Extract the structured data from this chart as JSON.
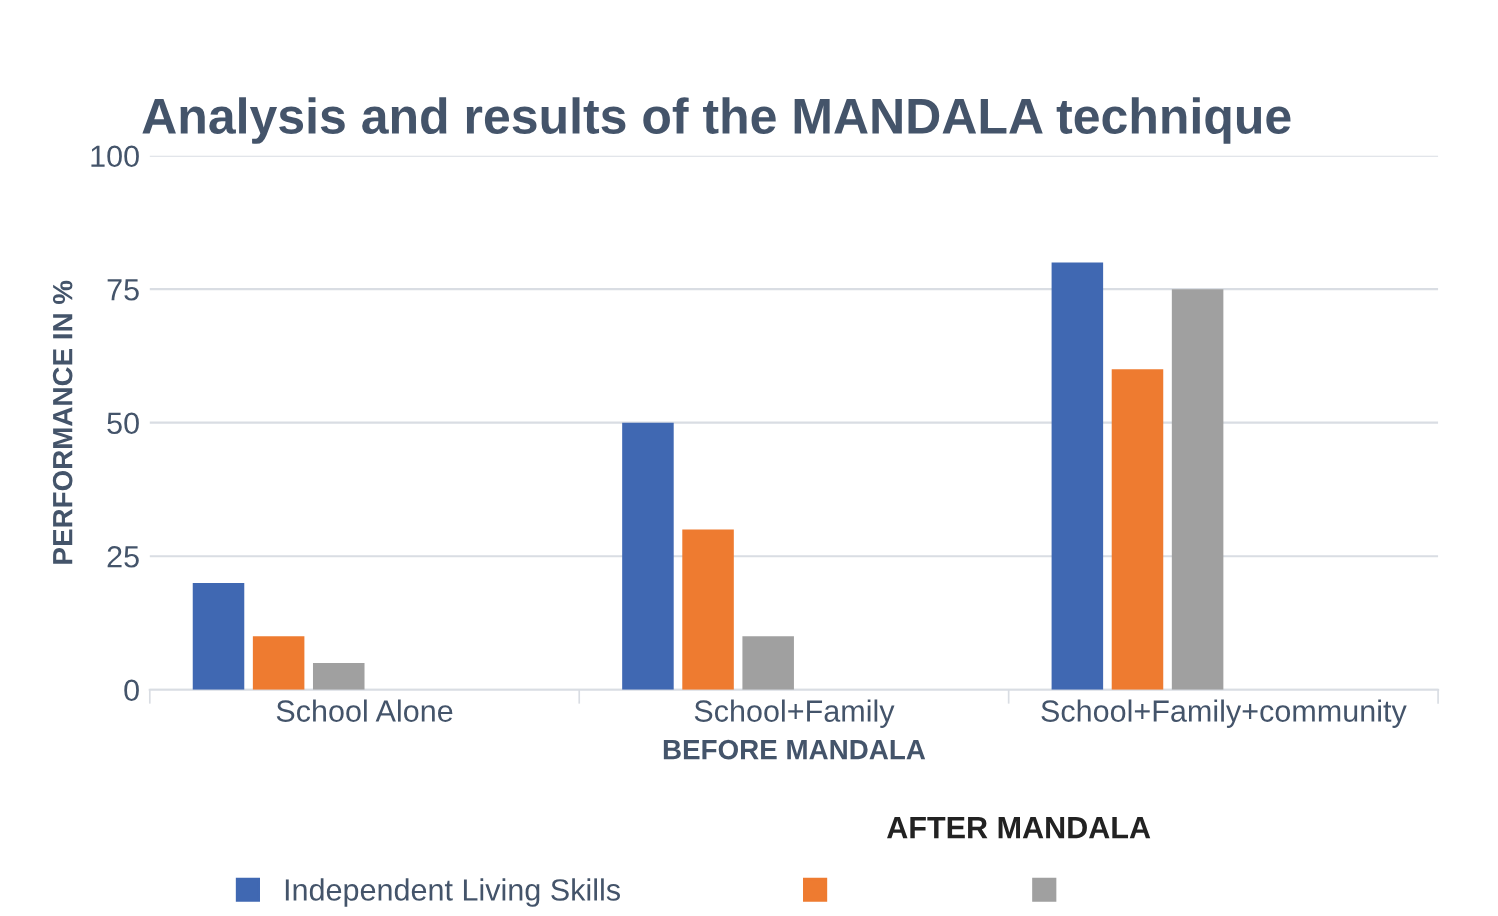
{
  "chart_data": {
    "type": "bar",
    "title": "Analysis and results of the MANDALA technique",
    "xlabel": "BEFORE MANDALA",
    "ylabel": "PERFORMANCE IN %",
    "categories": [
      "School Alone",
      "School+Family",
      "School+Family+community"
    ],
    "series": [
      {
        "name": "Independent Living Skills",
        "color": "#4068b2",
        "values": [
          20,
          50,
          80
        ]
      },
      {
        "color": "#ee7b30",
        "values": [
          10,
          30,
          60
        ]
      },
      {
        "color": "#a0a0a0",
        "values": [
          5,
          10,
          75
        ]
      }
    ],
    "ylim": [
      0,
      100
    ],
    "yticks": [
      0,
      25,
      50,
      75,
      100
    ],
    "grid": "y",
    "legend": "bottom",
    "annotations": [
      "AFTER MANDALA"
    ]
  }
}
